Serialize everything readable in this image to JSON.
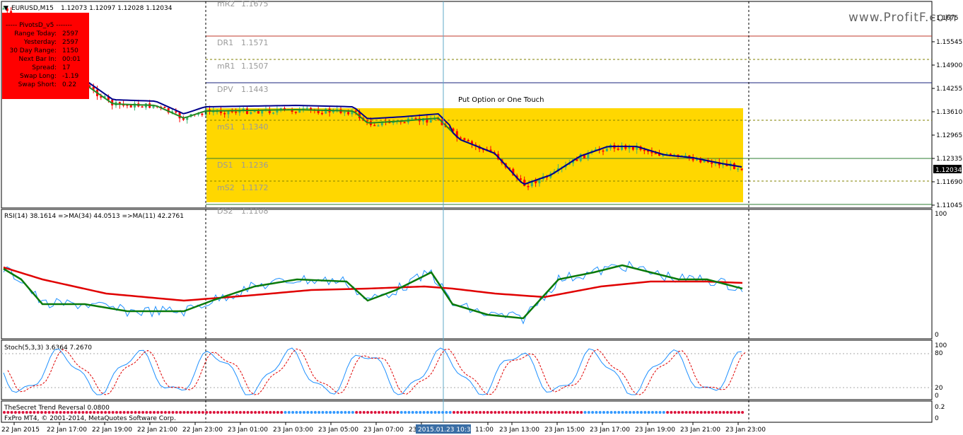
{
  "window": {
    "symbol": "EURUSD,M15",
    "ohlc": "1.12073 1.12097 1.12028 1.12034",
    "watermark": "www.ProfitF.com"
  },
  "info_panel": {
    "title": "----- PivotsD_v5 -------",
    "rows": [
      {
        "label": "Range  Today:",
        "value": "2597"
      },
      {
        "label": "Yesterday:",
        "value": "2597"
      },
      {
        "label": "30 Day Range:",
        "value": "1150"
      },
      {
        "label": "Next Bar In:",
        "value": "00:01"
      },
      {
        "label": "Spread:",
        "value": "17"
      },
      {
        "label": "Swap  Long:",
        "value": "-1.19"
      },
      {
        "label": "Swap  Short:",
        "value": "0.22"
      }
    ],
    "color": "#ff0000"
  },
  "pivots": [
    {
      "name": "mR2",
      "value": "1.1675",
      "color": "#9a9a9a"
    },
    {
      "name": "DR1",
      "value": "1.1571",
      "color": "#c0392b"
    },
    {
      "name": "mR1",
      "value": "1.1507",
      "color": "#808000"
    },
    {
      "name": "DPV",
      "value": "1.1443",
      "color": "#1a237e"
    },
    {
      "name": "mS1",
      "value": "1.1340",
      "color": "#808000"
    },
    {
      "name": "DS1",
      "value": "1.1236",
      "color": "#2e7d32"
    },
    {
      "name": "mS2",
      "value": "1.1172",
      "color": "#808000"
    },
    {
      "name": "DS2",
      "value": "1.1108",
      "color": "#2e7d32"
    }
  ],
  "annotation": {
    "text": "Put Option or One Touch",
    "highlight": "#ffd700"
  },
  "price_axis": {
    "ticks": [
      "1.1675",
      "1.15545",
      "1.14900",
      "1.14255",
      "1.13610",
      "1.12965",
      "1.12335",
      "1.11690",
      "1.11045"
    ],
    "current": "1.12034"
  },
  "rsi_panel": {
    "title": "RSI(14) 38.1614  =>MA(34) 44.0513  =>MA(11) 42.2761",
    "scale_max": "100",
    "scale_min": "0"
  },
  "stoch_panel": {
    "title": "Stoch(5,3,3) 3.6364 7.2670",
    "levels": [
      "100",
      "80",
      "20",
      "0"
    ]
  },
  "trend_panel": {
    "title": "TheSecret Trend Reversal 0.0800",
    "levels": [
      "0.2",
      "0"
    ]
  },
  "copyright": "FxPro MT4, © 2001-2014, MetaQuotes Software Corp.",
  "time_axis": {
    "labels": [
      "22 Jan 2015",
      "22 Jan 17:00",
      "22 Jan 19:00",
      "22 Jan 21:00",
      "22 Jan 23:00",
      "23 Jan 01:00",
      "23 Jan 03:00",
      "23 Jan 05:00",
      "23 Jan 07:00",
      "23",
      "11:00",
      "23 Jan 13:00",
      "23 Jan 15:00",
      "23 Jan 17:00",
      "23 Jan 19:00",
      "23 Jan 21:00",
      "23 Jan 23:00"
    ],
    "cursor_label": "2015.01.23 10:30"
  },
  "colors": {
    "bull": "#3cb371",
    "bear": "#ff0000",
    "ma_fast": "#228b22",
    "ma_slow": "#00008b",
    "rsi_line": "#1e90ff",
    "rsi_ma_slow": "#e00000",
    "rsi_ma_fast": "#0a7a0a",
    "crosshair": "#5fa8c8",
    "trend_bull": "#3399ff",
    "trend_bear": "#dc143c"
  }
}
